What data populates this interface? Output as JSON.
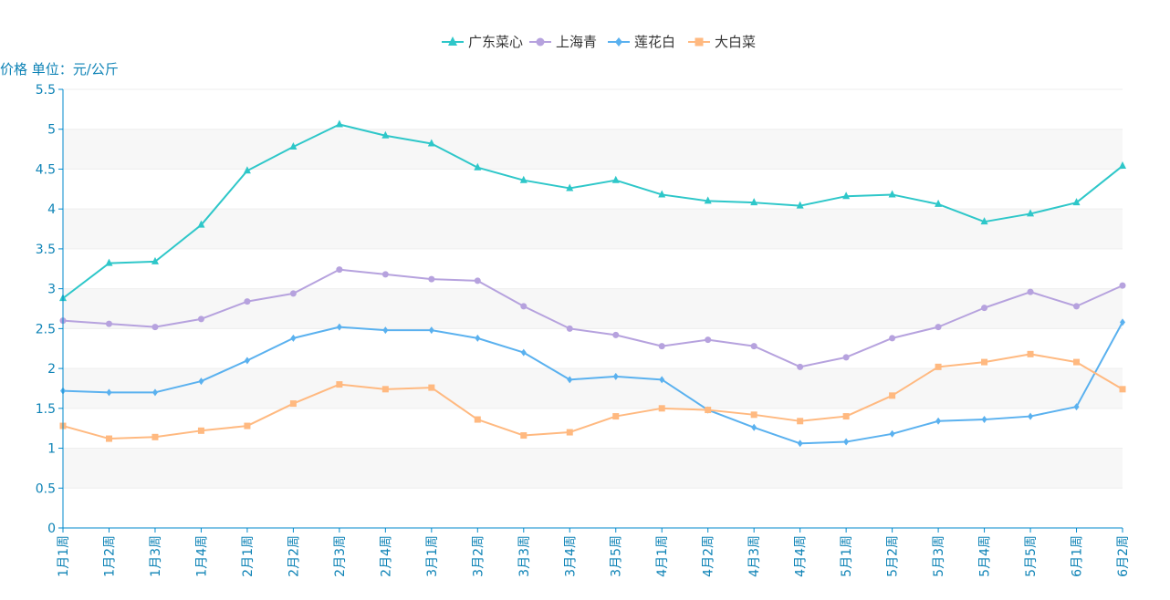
{
  "chart_data": {
    "type": "line",
    "ylabel": "价格 单位：元/公斤",
    "ylim": [
      0,
      5.5
    ],
    "yticks": [
      "0",
      "0.5",
      "1",
      "1.5",
      "2",
      "2.5",
      "3",
      "3.5",
      "4",
      "4.5",
      "5",
      "5.5"
    ],
    "grid": true,
    "legend_position": "top-center",
    "categories": [
      "1月1周",
      "1月2周",
      "1月3周",
      "1月4周",
      "2月1周",
      "2月2周",
      "2月3周",
      "2月4周",
      "3月1周",
      "3月2周",
      "3月3周",
      "3月4周",
      "3月5周",
      "4月1周",
      "4月2周",
      "4月3周",
      "4月4周",
      "5月1周",
      "5月2周",
      "5月3周",
      "5月4周",
      "5月5周",
      "6月1周",
      "6月2周"
    ],
    "series": [
      {
        "name": "广东菜心",
        "marker": "triangle",
        "color": "#2ec7c9",
        "values": [
          2.88,
          3.32,
          3.34,
          3.8,
          4.48,
          4.78,
          5.06,
          4.92,
          4.82,
          4.52,
          4.36,
          4.26,
          4.36,
          4.18,
          4.1,
          4.08,
          4.04,
          4.16,
          4.18,
          4.06,
          3.84,
          3.94,
          4.08,
          4.54
        ]
      },
      {
        "name": "上海青",
        "marker": "circle",
        "color": "#b6a2de",
        "values": [
          2.6,
          2.56,
          2.52,
          2.62,
          2.84,
          2.94,
          3.24,
          3.18,
          3.12,
          3.1,
          2.78,
          2.5,
          2.42,
          2.28,
          2.36,
          2.28,
          2.02,
          2.14,
          2.38,
          2.52,
          2.76,
          2.96,
          2.78,
          3.04
        ]
      },
      {
        "name": "莲花白",
        "marker": "diamond",
        "color": "#5ab1ef",
        "values": [
          1.72,
          1.7,
          1.7,
          1.84,
          2.1,
          2.38,
          2.52,
          2.48,
          2.48,
          2.38,
          2.2,
          1.86,
          1.9,
          1.86,
          1.48,
          1.26,
          1.06,
          1.08,
          1.18,
          1.34,
          1.36,
          1.4,
          1.52,
          2.58
        ]
      },
      {
        "name": "大白菜",
        "marker": "square",
        "color": "#ffb980",
        "values": [
          1.28,
          1.12,
          1.14,
          1.22,
          1.28,
          1.56,
          1.8,
          1.74,
          1.76,
          1.36,
          1.16,
          1.2,
          1.4,
          1.5,
          1.48,
          1.42,
          1.34,
          1.4,
          1.66,
          2.02,
          2.08,
          2.18,
          2.08,
          1.74
        ]
      }
    ],
    "axis_color": "#008acd",
    "grid_band_color": "#f7f7f7",
    "grid_line_color": "#eeeeee"
  }
}
